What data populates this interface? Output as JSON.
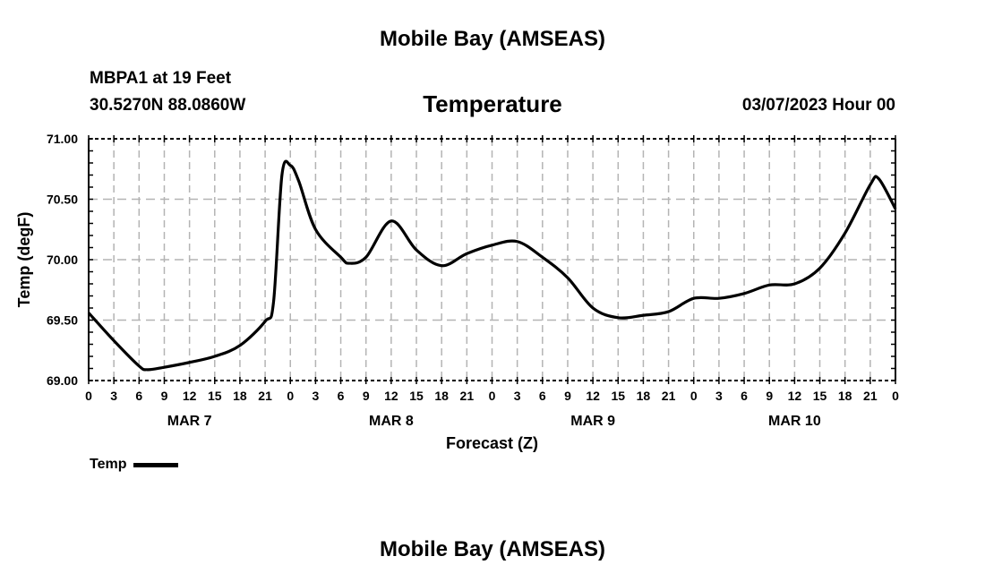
{
  "header": {
    "title": "Mobile Bay (AMSEAS)",
    "station": "MBPA1 at 19 Feet",
    "coords": "30.5270N  88.0860W",
    "subtitle": "Temperature",
    "date": "03/07/2023 Hour 00"
  },
  "footer": {
    "title": "Mobile Bay (AMSEAS)"
  },
  "legend": {
    "label": "Temp"
  },
  "chart_data": {
    "type": "line",
    "title": "Temperature",
    "xlabel": "Forecast (Z)",
    "ylabel": "Temp (degF)",
    "ylim": [
      69.0,
      71.0
    ],
    "xlim_hours": [
      0,
      96
    ],
    "y_ticks": [
      "69.00",
      "69.50",
      "70.00",
      "70.50",
      "71.00"
    ],
    "x_tick_labels": [
      "0",
      "3",
      "6",
      "9",
      "12",
      "15",
      "18",
      "21",
      "0",
      "3",
      "6",
      "9",
      "12",
      "15",
      "18",
      "21",
      "0",
      "3",
      "6",
      "9",
      "12",
      "15",
      "18",
      "21",
      "0",
      "3",
      "6",
      "9",
      "12",
      "15",
      "18",
      "21",
      "0"
    ],
    "day_labels": [
      "MAR 7",
      "MAR 8",
      "MAR 9",
      "MAR 10"
    ],
    "grid": true,
    "legend_placement": "bottom-left",
    "series": [
      {
        "name": "Temp",
        "color": "#000000",
        "x_hours": [
          0,
          3,
          6,
          7,
          9,
          12,
          15,
          18,
          21,
          22,
          23,
          24,
          25,
          27,
          30,
          31,
          33,
          36,
          39,
          42,
          45,
          48,
          51,
          54,
          57,
          60,
          63,
          66,
          69,
          72,
          75,
          78,
          81,
          84,
          87,
          90,
          93,
          94,
          96
        ],
        "values": [
          69.56,
          69.33,
          69.12,
          69.09,
          69.11,
          69.15,
          69.2,
          69.29,
          69.49,
          69.65,
          70.7,
          70.78,
          70.65,
          70.25,
          70.02,
          69.97,
          70.02,
          70.32,
          70.08,
          69.95,
          70.05,
          70.12,
          70.15,
          70.02,
          69.85,
          69.6,
          69.52,
          69.54,
          69.57,
          69.68,
          69.68,
          69.72,
          69.79,
          69.8,
          69.93,
          70.22,
          70.62,
          70.67,
          70.42
        ]
      }
    ]
  }
}
